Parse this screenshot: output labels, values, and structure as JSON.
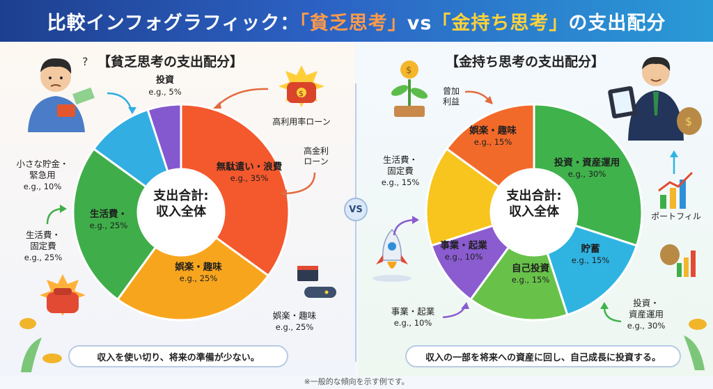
{
  "header": {
    "title_prefix": "比較インフォグラフィック：",
    "title_poor": "「貧乏思考」",
    "title_vs": "vs",
    "title_rich": "「金持ち思考」",
    "title_suffix": "の支出配分"
  },
  "colors": {
    "poor_waste": "#f4582d",
    "poor_fun": "#f8a51e",
    "poor_living": "#3fae4a",
    "poor_savings": "#33aee2",
    "poor_invest": "#8458cf",
    "rich_invest": "#3fb24c",
    "rich_savings": "#2fb4e2",
    "rich_self": "#68c24a",
    "rich_business": "#8a5ccf",
    "rich_living": "#f7c51e",
    "rich_fun": "#f26a2a"
  },
  "poor": {
    "title": "【貧乏思考の支出配分】",
    "center": "支出合計:\n収入全体",
    "segments": [
      {
        "name": "無駄遣い・浪費",
        "value_label": "e.g., 35%",
        "value": 35
      },
      {
        "name": "娯楽・趣味",
        "value_label": "e.g., 25%",
        "value": 25
      },
      {
        "name": "生活費・",
        "value_label": "e.g., 25%",
        "value": 25
      },
      {
        "name": "",
        "value_label": "",
        "value": 10
      },
      {
        "name": "投資",
        "value_label": "e.g., 5%",
        "value": 5
      }
    ],
    "callouts": {
      "high_interest": "高利用率ローン",
      "high_loan": "高金利\nローン",
      "savings": "小さな貯金・\n緊急用",
      "savings_val": "e.g., 10%",
      "living": "生活費・\n固定費",
      "living_val": "e.g., 25%",
      "fun": "娯楽・趣味",
      "fun_val": "e.g., 25%"
    },
    "summary": "収入を使い切り、将来の準備が少ない。"
  },
  "rich": {
    "title": "【金持ち思考の支出配分】",
    "center": "支出合計:\n収入全体",
    "segments": [
      {
        "name": "投資・資産運用",
        "value_label": "e.g., 30%",
        "value": 30
      },
      {
        "name": "貯蓄",
        "value_label": "e.g., 15%",
        "value": 15
      },
      {
        "name": "自己投資",
        "value_label": "e.g., 15%",
        "value": 15
      },
      {
        "name": "事業・起業",
        "value_label": "e.g., 10%",
        "value": 10
      },
      {
        "name": "",
        "value_label": "",
        "value": 15
      },
      {
        "name": "娯楽・趣味",
        "value_label": "e.g., 15%",
        "value": 15
      }
    ],
    "callouts": {
      "gain": "曾加\n利益",
      "living": "生活費・\n固定費",
      "living_val": "e.g., 15%",
      "portfolio": "ポートフィル",
      "business": "事業・起業",
      "business_val": "e.g., 10%",
      "invest": "投資・\n資産運用",
      "invest_val": "e.g., 30%"
    },
    "summary": "収入の一部を将来への資産に回し、自己成長に投資する。"
  },
  "vs_label": "VS",
  "footnote": "※一般的な傾向を示す例です。"
}
